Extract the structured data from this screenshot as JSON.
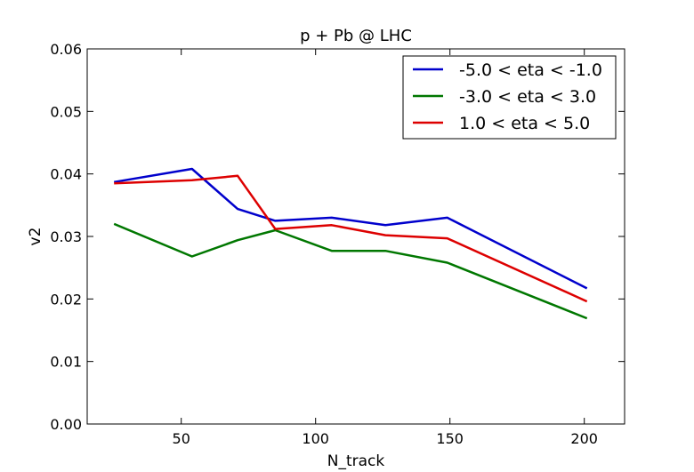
{
  "chart_data": {
    "type": "line",
    "title": "p + Pb @ LHC",
    "xlabel": "N_track",
    "ylabel": "v2",
    "xlim": [
      15,
      215
    ],
    "ylim": [
      0.0,
      0.06
    ],
    "xticks": [
      50,
      100,
      150,
      200
    ],
    "yticks": [
      0.0,
      0.01,
      0.02,
      0.03,
      0.04,
      0.05,
      0.06
    ],
    "xtick_labels": [
      "50",
      "100",
      "150",
      "200"
    ],
    "ytick_labels": [
      "0.00",
      "0.01",
      "0.02",
      "0.03",
      "0.04",
      "0.05",
      "0.06"
    ],
    "grid": false,
    "legend_position": "top-right",
    "series": [
      {
        "name": "-5.0 < eta < -1.0",
        "color": "#0000cc",
        "x": [
          25,
          54,
          71,
          85,
          106,
          126,
          149,
          201
        ],
        "y": [
          0.0387,
          0.0408,
          0.0344,
          0.0325,
          0.033,
          0.0318,
          0.033,
          0.0217
        ]
      },
      {
        "name": "-3.0 < eta < 3.0",
        "color": "#007700",
        "x": [
          25,
          54,
          71,
          85,
          106,
          126,
          149,
          201
        ],
        "y": [
          0.032,
          0.0268,
          0.0294,
          0.031,
          0.0277,
          0.0277,
          0.0258,
          0.0169
        ]
      },
      {
        "name": "1.0 < eta < 5.0",
        "color": "#dd0000",
        "x": [
          25,
          54,
          71,
          85,
          106,
          126,
          149,
          201
        ],
        "y": [
          0.0385,
          0.039,
          0.0397,
          0.0312,
          0.0318,
          0.0302,
          0.0297,
          0.0196
        ]
      }
    ]
  }
}
